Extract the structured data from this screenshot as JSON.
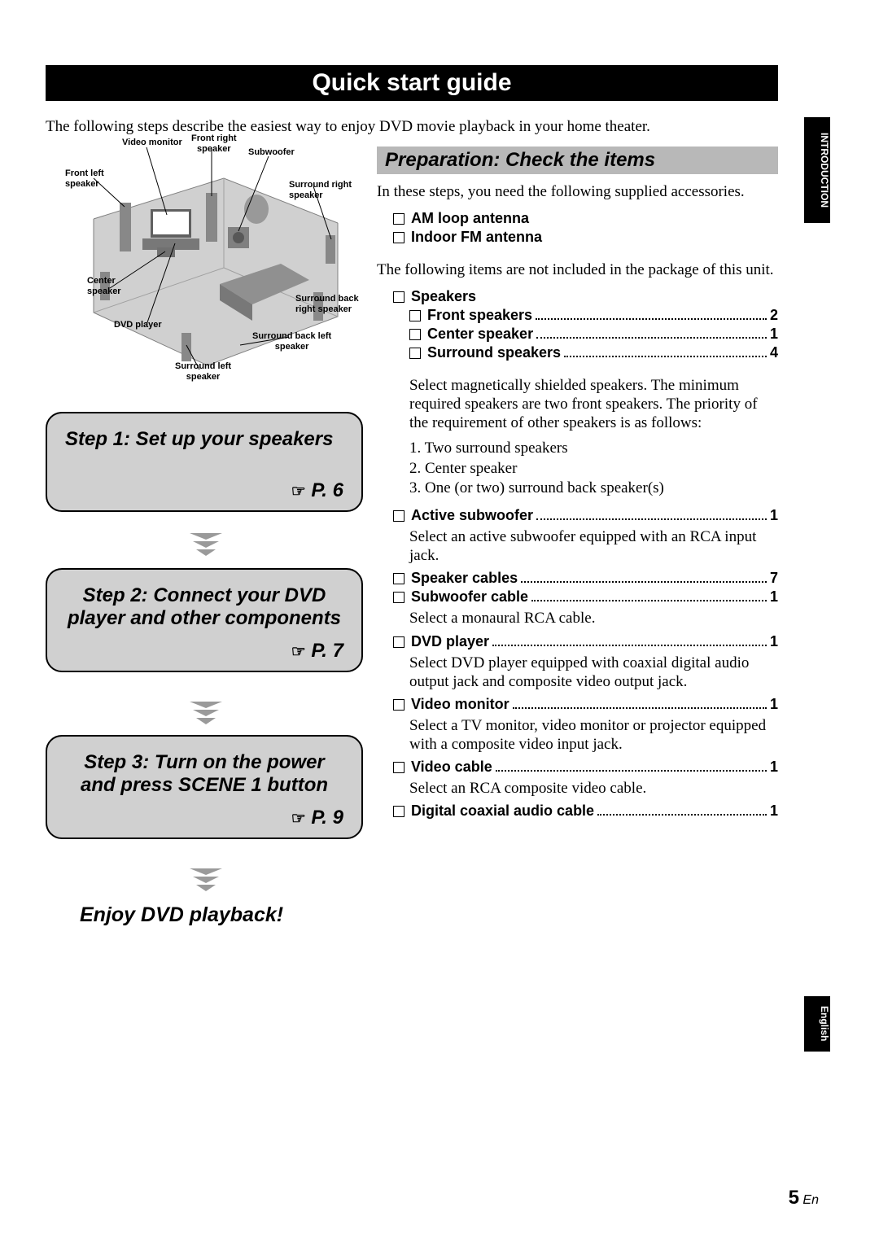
{
  "title": "Quick start guide",
  "intro": "The following steps describe the easiest way to enjoy DVD movie playback in your home theater.",
  "side_tabs": {
    "intro": "INTRODUCTION",
    "english": "English"
  },
  "diagram_labels": {
    "video_monitor": "Video monitor",
    "front_right": "Front right\nspeaker",
    "subwoofer": "Subwoofer",
    "front_left": "Front left\nspeaker",
    "surround_right": "Surround right\nspeaker",
    "center": "Center\nspeaker",
    "dvd_player": "DVD player",
    "surround_back_right": "Surround back\nright speaker",
    "surround_back_left": "Surround back left\nspeaker",
    "surround_left": "Surround left\nspeaker"
  },
  "steps": [
    {
      "title": "Step 1: Set up your speakers",
      "page": "P. 6"
    },
    {
      "title": "Step 2: Connect your DVD player and other components",
      "page": "P. 7"
    },
    {
      "title": "Step 3: Turn on the power and press SCENE 1 button",
      "page": "P. 9"
    }
  ],
  "enjoy": "Enjoy DVD playback!",
  "prep": {
    "heading": "Preparation: Check the items",
    "p1": "In these steps, you need the following supplied accessories.",
    "supplied": [
      "AM loop antenna",
      "Indoor FM antenna"
    ],
    "p2": "The following items are not included in the package of this unit.",
    "speakers_label": "Speakers",
    "speaker_items": [
      {
        "label": "Front speakers",
        "qty": "2"
      },
      {
        "label": "Center speaker",
        "qty": "1"
      },
      {
        "label": "Surround speakers",
        "qty": "4"
      }
    ],
    "speakers_note": "Select magnetically shielded speakers. The minimum required speakers are two front speakers. The priority of the requirement of other speakers is as follows:",
    "priority": [
      "1. Two surround speakers",
      "2. Center speaker",
      "3. One (or two) surround back speaker(s)"
    ],
    "items": [
      {
        "label": "Active subwoofer",
        "qty": "1",
        "note": "Select an active subwoofer equipped with an RCA input jack."
      },
      {
        "label": "Speaker cables",
        "qty": "7",
        "note": ""
      },
      {
        "label": "Subwoofer cable",
        "qty": "1",
        "note": "Select a monaural RCA cable."
      },
      {
        "label": "DVD player",
        "qty": "1",
        "note": "Select DVD player equipped with coaxial digital audio output jack and composite video output jack."
      },
      {
        "label": "Video monitor",
        "qty": "1",
        "note": "Select a TV monitor, video monitor or projector equipped with a composite video input jack."
      },
      {
        "label": "Video cable",
        "qty": "1",
        "note": "Select an RCA composite video cable."
      },
      {
        "label": "Digital coaxial audio cable",
        "qty": "1",
        "note": ""
      }
    ]
  },
  "page_number": {
    "n": "5",
    "lang": "En"
  },
  "colors": {
    "card_bg": "#d0d0d0",
    "section_bg": "#b8b8b8",
    "black": "#000000",
    "white": "#ffffff"
  }
}
